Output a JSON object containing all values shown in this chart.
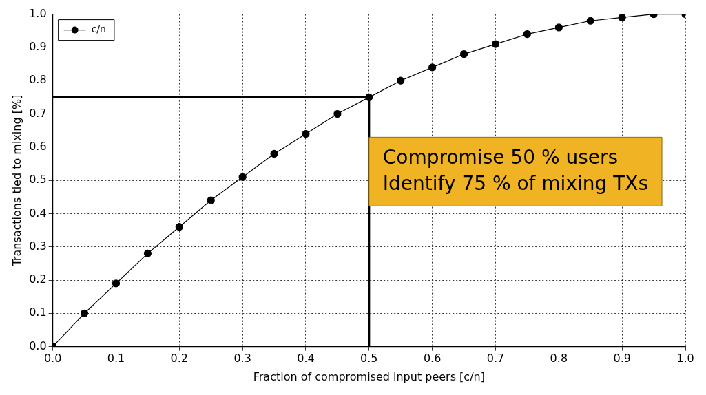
{
  "chart_data": {
    "type": "line",
    "xlabel": "Fraction of compromised input peers [c/n]",
    "ylabel": "Transactions tied to mixing [%]",
    "x": [
      0,
      0.05,
      0.1,
      0.15,
      0.2,
      0.25,
      0.3,
      0.35,
      0.4,
      0.45,
      0.5,
      0.55,
      0.6,
      0.65,
      0.7,
      0.75,
      0.8,
      0.85,
      0.9,
      0.95,
      1.0
    ],
    "series": [
      {
        "name": "c/n",
        "color": "#000000",
        "values": [
          0,
          0.1,
          0.19,
          0.28,
          0.36,
          0.44,
          0.51,
          0.58,
          0.64,
          0.7,
          0.75,
          0.8,
          0.84,
          0.88,
          0.91,
          0.94,
          0.96,
          0.98,
          0.99,
          1.0,
          1.0
        ]
      }
    ],
    "xlim": [
      0,
      1
    ],
    "ylim": [
      0,
      1
    ],
    "xticks": [
      {
        "value": 0,
        "label": "0.0"
      },
      {
        "value": 0.1,
        "label": "0.1"
      },
      {
        "value": 0.2,
        "label": "0.2"
      },
      {
        "value": 0.3,
        "label": "0.3"
      },
      {
        "value": 0.4,
        "label": "0.4"
      },
      {
        "value": 0.5,
        "label": "0.5"
      },
      {
        "value": 0.6,
        "label": "0.6"
      },
      {
        "value": 0.7,
        "label": "0.7"
      },
      {
        "value": 0.8,
        "label": "0.8"
      },
      {
        "value": 0.9,
        "label": "0.9"
      },
      {
        "value": 1,
        "label": "1.0"
      }
    ],
    "yticks": [
      {
        "value": 0,
        "label": "0.0"
      },
      {
        "value": 0.1,
        "label": "0.1"
      },
      {
        "value": 0.2,
        "label": "0.2"
      },
      {
        "value": 0.3,
        "label": "0.3"
      },
      {
        "value": 0.4,
        "label": "0.4"
      },
      {
        "value": 0.5,
        "label": "0.5"
      },
      {
        "value": 0.6,
        "label": "0.6"
      },
      {
        "value": 0.7,
        "label": "0.7"
      },
      {
        "value": 0.8,
        "label": "0.8"
      },
      {
        "value": 0.9,
        "label": "0.9"
      },
      {
        "value": 1,
        "label": "1.0"
      }
    ],
    "ref_lines": [
      {
        "axis": "y",
        "value": 0.75,
        "color": "#000000"
      },
      {
        "axis": "x",
        "value": 0.5,
        "color": "#000000"
      }
    ],
    "annotations": [
      {
        "text": "Compromise 50 % users\nIdentify 75 % of mixing TXs",
        "x": 0.5,
        "y": 0.75
      }
    ],
    "grid": true,
    "legend": "top left",
    "marker": "circle",
    "line_style": "solid"
  }
}
